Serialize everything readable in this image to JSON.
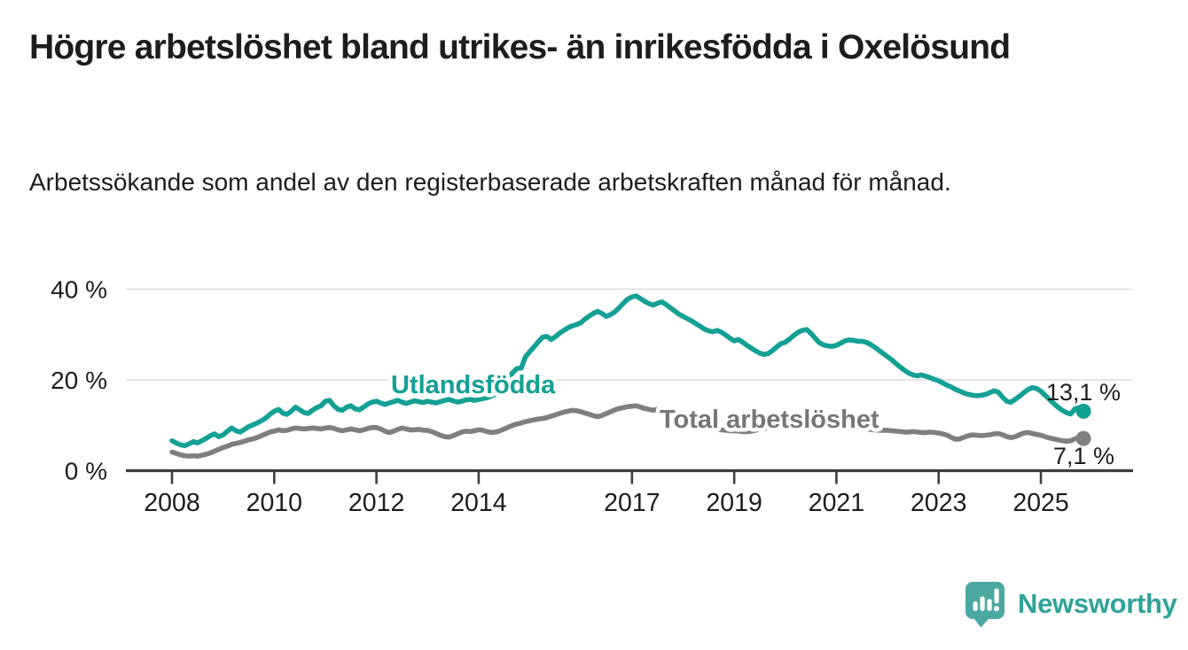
{
  "header": {
    "title": "Högre arbetslöshet bland utrikes- än inrikesfödda i Oxelösund",
    "subtitle": "Arbetssökande som andel av den registerbaserade arbetskraften månad för månad."
  },
  "branding": {
    "name": "Newsworthy",
    "logo_icon": "speech-bubble-bar-chart-icon",
    "bubble_color": "#4ba8a1",
    "text_color": "#2fa39a"
  },
  "chart_data": {
    "type": "line",
    "title": "Högre arbetslöshet bland utrikes- än inrikesfödda i Oxelösund",
    "xlabel": "",
    "ylabel": "Arbetssökande som andel av den registerbaserade arbetskraften",
    "x_unit": "months, Jan 2008 – Nov 2025",
    "start_year": 2008,
    "points_per_year": 12,
    "ylim": [
      0,
      44
    ],
    "grid": "horizontal",
    "y_ticks": [
      0,
      20,
      40
    ],
    "y_tick_labels": [
      "0 %",
      "20 %",
      "40 %"
    ],
    "x_tick_years": [
      2008,
      2010,
      2012,
      2014,
      2017,
      2019,
      2021,
      2023,
      2025
    ],
    "x_tick_labels": [
      "2008",
      "2010",
      "2012",
      "2014",
      "2017",
      "2019",
      "2021",
      "2023",
      "2025"
    ],
    "colors": {
      "axis": "#3d3d3d",
      "grid": "#dbdbdb",
      "text": "#1d1d1b"
    },
    "series": [
      {
        "name": "Utlandsfödda",
        "color": "#14a095",
        "end_label": "13,1 %",
        "end_value": 13.1,
        "values": [
          6.6,
          6.1,
          5.7,
          5.5,
          5.9,
          6.4,
          6.1,
          6.6,
          7.1,
          7.7,
          8.1,
          7.5,
          7.9,
          8.7,
          9.4,
          8.8,
          8.5,
          9.1,
          9.7,
          10.1,
          10.5,
          11.0,
          11.6,
          12.4,
          13.1,
          13.5,
          12.7,
          12.4,
          13.1,
          14.0,
          13.4,
          12.8,
          12.6,
          13.3,
          13.9,
          14.3,
          15.3,
          15.5,
          14.3,
          13.5,
          13.3,
          14.0,
          14.3,
          13.6,
          13.4,
          14.0,
          14.7,
          15.1,
          15.3,
          14.9,
          14.6,
          14.9,
          15.2,
          15.5,
          15.1,
          14.8,
          15.1,
          15.4,
          15.2,
          15.0,
          15.3,
          15.1,
          14.9,
          15.2,
          15.5,
          15.7,
          15.4,
          15.1,
          15.3,
          15.6,
          15.7,
          15.5,
          15.7,
          15.9,
          16.1,
          16.4,
          17.0,
          17.8,
          18.9,
          20.3,
          21.6,
          22.5,
          22.6,
          25.1,
          26.2,
          27.3,
          28.4,
          29.4,
          29.6,
          28.9,
          29.5,
          30.3,
          30.9,
          31.5,
          31.9,
          32.2,
          32.6,
          33.4,
          34.1,
          34.7,
          35.1,
          34.6,
          34.0,
          34.4,
          35.0,
          35.9,
          36.9,
          37.8,
          38.3,
          38.5,
          37.9,
          37.3,
          36.8,
          36.5,
          36.9,
          37.2,
          36.6,
          35.9,
          35.2,
          34.5,
          34.0,
          33.5,
          33.0,
          32.4,
          31.8,
          31.2,
          30.8,
          30.6,
          30.9,
          30.5,
          29.9,
          29.2,
          28.6,
          28.9,
          28.3,
          27.6,
          27.0,
          26.4,
          25.9,
          25.6,
          25.8,
          26.5,
          27.3,
          28.0,
          28.3,
          29.0,
          29.8,
          30.5,
          30.9,
          31.1,
          30.3,
          29.2,
          28.2,
          27.7,
          27.5,
          27.4,
          27.6,
          28.1,
          28.6,
          28.8,
          28.7,
          28.5,
          28.5,
          28.3,
          27.8,
          27.2,
          26.5,
          25.8,
          25.1,
          24.4,
          23.6,
          22.8,
          22.1,
          21.5,
          21.1,
          20.9,
          21.1,
          20.8,
          20.5,
          20.1,
          19.8,
          19.3,
          18.8,
          18.4,
          17.9,
          17.5,
          17.1,
          16.8,
          16.6,
          16.5,
          16.6,
          16.8,
          17.2,
          17.6,
          17.3,
          16.2,
          15.3,
          15.1,
          15.7,
          16.4,
          17.2,
          17.9,
          18.3,
          18.1,
          17.5,
          16.6,
          15.7,
          14.8,
          14.0,
          13.3,
          12.8,
          12.5,
          13.6,
          13.9,
          13.1
        ]
      },
      {
        "name": "Total arbetslöshet",
        "color": "#7f7f7f",
        "end_label": "7,1 %",
        "end_value": 7.1,
        "values": [
          4.1,
          3.8,
          3.5,
          3.3,
          3.2,
          3.3,
          3.2,
          3.4,
          3.6,
          3.9,
          4.3,
          4.7,
          5.1,
          5.4,
          5.8,
          6.0,
          6.2,
          6.5,
          6.8,
          7.0,
          7.3,
          7.7,
          8.1,
          8.5,
          8.7,
          9.0,
          8.8,
          8.9,
          9.2,
          9.4,
          9.3,
          9.2,
          9.3,
          9.4,
          9.3,
          9.2,
          9.4,
          9.5,
          9.3,
          9.0,
          8.8,
          9.0,
          9.2,
          9.0,
          8.8,
          9.0,
          9.3,
          9.5,
          9.5,
          9.2,
          8.7,
          8.4,
          8.7,
          9.1,
          9.4,
          9.2,
          9.0,
          9.0,
          9.1,
          8.9,
          8.9,
          8.6,
          8.2,
          7.8,
          7.5,
          7.4,
          7.7,
          8.1,
          8.5,
          8.7,
          8.6,
          8.8,
          9.0,
          8.9,
          8.6,
          8.4,
          8.5,
          8.8,
          9.2,
          9.6,
          10.0,
          10.3,
          10.5,
          10.8,
          11.0,
          11.2,
          11.4,
          11.5,
          11.7,
          12.0,
          12.3,
          12.6,
          12.9,
          13.1,
          13.3,
          13.2,
          13.0,
          12.7,
          12.4,
          12.1,
          11.9,
          12.2,
          12.6,
          13.0,
          13.4,
          13.7,
          13.9,
          14.1,
          14.2,
          14.3,
          14.0,
          13.7,
          13.5,
          13.3,
          13.5,
          13.7,
          13.4,
          13.0,
          12.7,
          12.4,
          12.1,
          11.8,
          11.4,
          11.0,
          10.6,
          10.2,
          9.8,
          9.5,
          9.2,
          9.0,
          8.9,
          8.8,
          8.8,
          8.7,
          8.6,
          8.6,
          8.7,
          8.9,
          9.1,
          9.3,
          9.5,
          9.7,
          9.9,
          10.1,
          10.4,
          10.7,
          11.1,
          11.5,
          11.8,
          11.9,
          11.7,
          11.4,
          11.1,
          10.8,
          10.5,
          10.2,
          10.0,
          9.8,
          9.7,
          9.6,
          9.5,
          9.4,
          9.3,
          9.2,
          9.1,
          9.0,
          8.9,
          8.9,
          8.9,
          8.8,
          8.7,
          8.6,
          8.5,
          8.5,
          8.6,
          8.5,
          8.4,
          8.4,
          8.5,
          8.4,
          8.3,
          8.1,
          7.8,
          7.3,
          6.9,
          7.0,
          7.4,
          7.7,
          7.9,
          7.8,
          7.7,
          7.8,
          7.9,
          8.1,
          8.2,
          7.9,
          7.5,
          7.3,
          7.5,
          7.9,
          8.3,
          8.4,
          8.2,
          8.0,
          7.8,
          7.5,
          7.2,
          7.0,
          6.8,
          6.6,
          6.5,
          6.6,
          7.0,
          7.3,
          7.1
        ]
      }
    ]
  }
}
